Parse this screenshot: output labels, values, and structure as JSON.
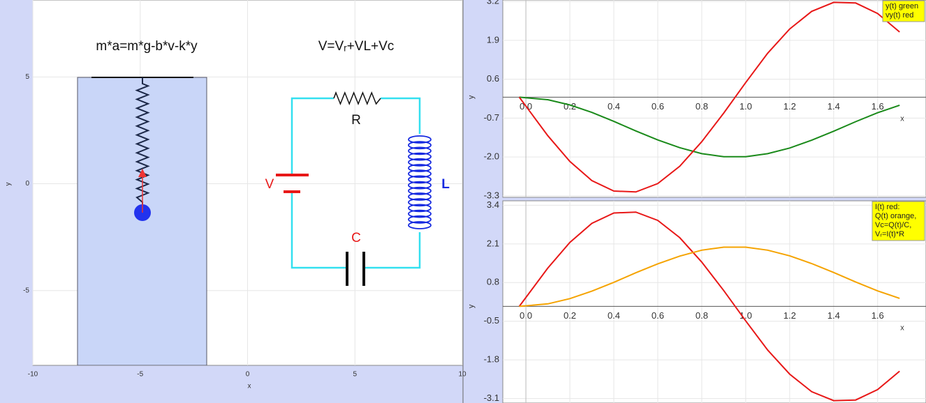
{
  "simulation": {
    "equation_mechanics": "m*a=m*g-b*v-k*y",
    "equation_circuit": "V=Vᵣ+VL+Vc",
    "label_r": "R",
    "label_v": "V",
    "label_l": "L",
    "label_c": "C",
    "xlabel": "x",
    "ylabel": "y",
    "xlim": [
      -10,
      10
    ],
    "ylim": [
      -8.5,
      8.6
    ],
    "xticks": [
      -10,
      -5,
      0,
      5,
      10
    ],
    "yticks": [
      -5,
      0,
      5
    ],
    "grid": true
  },
  "chart_data": [
    {
      "type": "line",
      "xlabel": "x",
      "ylabel": "y",
      "x": [
        -0.03,
        0.1,
        0.2,
        0.3,
        0.4,
        0.5,
        0.6,
        0.7,
        0.8,
        0.9,
        1.0,
        1.1,
        1.2,
        1.3,
        1.4,
        1.5,
        1.6,
        1.7
      ],
      "series": [
        {
          "name": "y(t) green",
          "color": "#1a8a1a",
          "values": [
            0,
            -0.085,
            -0.26,
            -0.51,
            -0.81,
            -1.13,
            -1.43,
            -1.69,
            -1.89,
            -1.99,
            -1.99,
            -1.89,
            -1.7,
            -1.44,
            -1.14,
            -0.82,
            -0.52,
            -0.27
          ]
        },
        {
          "name": "vy(t) red",
          "color": "#e81818",
          "values": [
            0,
            -1.29,
            -2.15,
            -2.79,
            -3.14,
            -3.17,
            -2.89,
            -2.31,
            -1.49,
            -0.53,
            0.49,
            1.47,
            2.28,
            2.87,
            3.17,
            3.15,
            2.8,
            2.18
          ]
        }
      ],
      "xlim": [
        -0.105,
        1.82
      ],
      "ylim": [
        -3.35,
        3.25
      ],
      "xticks": [
        {
          "value": 0,
          "label": "0.0"
        },
        0.2,
        0.4,
        0.6,
        0.8,
        {
          "value": 1,
          "label": "1.0"
        },
        1.2,
        1.4,
        1.6
      ],
      "yticks": [
        3.2,
        1.9,
        0.6,
        -0.7,
        {
          "value": -2,
          "label": "-2.0"
        },
        -3.3
      ],
      "grid": true,
      "legend": "top-right",
      "legend_color": "#ffff00"
    },
    {
      "type": "line",
      "xlabel": "x",
      "ylabel": "y",
      "x": [
        -0.03,
        0.1,
        0.2,
        0.3,
        0.4,
        0.5,
        0.6,
        0.7,
        0.8,
        0.9,
        1.0,
        1.1,
        1.2,
        1.3,
        1.4,
        1.5,
        1.6,
        1.7
      ],
      "series": [
        {
          "name": "I(t) red:",
          "color": "#e81818",
          "values": [
            0,
            1.29,
            2.15,
            2.79,
            3.14,
            3.17,
            2.89,
            2.31,
            1.49,
            0.53,
            -0.49,
            -1.47,
            -2.28,
            -2.87,
            -3.17,
            -3.15,
            -2.8,
            -2.18
          ]
        },
        {
          "name": "Q(t) orange,",
          "color": "#f5a300",
          "values": [
            0,
            0.085,
            0.26,
            0.51,
            0.81,
            1.13,
            1.43,
            1.69,
            1.89,
            1.99,
            1.99,
            1.89,
            1.7,
            1.44,
            1.14,
            0.82,
            0.52,
            0.27
          ]
        }
      ],
      "legend_notes": [
        "Vc=Q(t)/C,",
        "Vᵣ=I(t)*R"
      ],
      "xlim": [
        -0.105,
        1.82
      ],
      "ylim": [
        -3.25,
        3.55
      ],
      "xticks": [
        {
          "value": 0,
          "label": "0.0"
        },
        0.2,
        0.4,
        0.6,
        0.8,
        {
          "value": 1,
          "label": "1.0"
        },
        1.2,
        1.4,
        1.6
      ],
      "yticks": [
        3.4,
        2.1,
        0.8,
        -0.5,
        -1.8,
        -3.1
      ],
      "grid": true,
      "legend": "top-right",
      "legend_color": "#ffff00"
    }
  ]
}
